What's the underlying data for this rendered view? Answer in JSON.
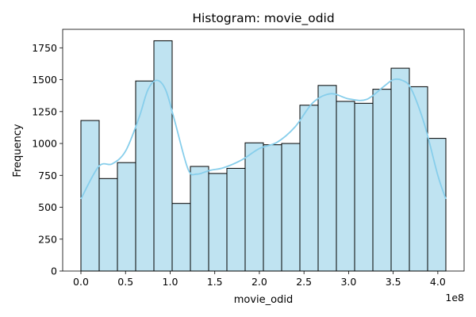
{
  "chart_data": {
    "type": "bar",
    "title": "Histogram: movie_odid",
    "xlabel": "movie_odid",
    "ylabel": "Frequency",
    "x_offset_label": "1e8",
    "bin_edges": [
      0.0,
      0.2045,
      0.409,
      0.6135,
      0.818,
      1.0225,
      1.227,
      1.4315,
      1.636,
      1.8405,
      2.045,
      2.2495,
      2.454,
      2.6585,
      2.863,
      3.0675,
      3.272,
      3.4765,
      3.681,
      3.8855,
      4.09
    ],
    "values": [
      1180,
      725,
      850,
      1490,
      1805,
      530,
      820,
      765,
      805,
      1005,
      990,
      1000,
      1300,
      1455,
      1330,
      1315,
      1425,
      1590,
      1445,
      1040
    ],
    "kde": {
      "x": [
        0.0,
        0.2,
        0.35,
        0.5,
        0.65,
        0.75,
        0.85,
        0.95,
        1.05,
        1.2,
        1.3,
        1.45,
        1.6,
        1.8,
        2.0,
        2.2,
        2.4,
        2.6,
        2.8,
        3.0,
        3.2,
        3.4,
        3.5,
        3.6,
        3.7,
        3.85,
        4.0,
        4.09
      ],
      "y": [
        565,
        820,
        840,
        940,
        1200,
        1420,
        1495,
        1420,
        1180,
        800,
        760,
        790,
        810,
        870,
        960,
        1010,
        1130,
        1320,
        1390,
        1350,
        1345,
        1450,
        1500,
        1495,
        1430,
        1150,
        750,
        565
      ]
    },
    "xlim": [
      -0.2045,
      4.2945
    ],
    "ylim": [
      0,
      1895
    ],
    "x_ticks": [
      0.0,
      0.5,
      1.0,
      1.5,
      2.0,
      2.5,
      3.0,
      3.5,
      4.0
    ],
    "x_tick_labels": [
      "0.0",
      "0.5",
      "1.0",
      "1.5",
      "2.0",
      "2.5",
      "3.0",
      "3.5",
      "4.0"
    ],
    "y_ticks": [
      0,
      250,
      500,
      750,
      1000,
      1250,
      1500,
      1750
    ],
    "y_tick_labels": [
      "0",
      "250",
      "500",
      "750",
      "1000",
      "1250",
      "1500",
      "1750"
    ],
    "grid": false,
    "colors": {
      "bar_fill": "#bfe3f1",
      "bar_edge": "#000000",
      "kde_line": "#87ceeb"
    }
  }
}
